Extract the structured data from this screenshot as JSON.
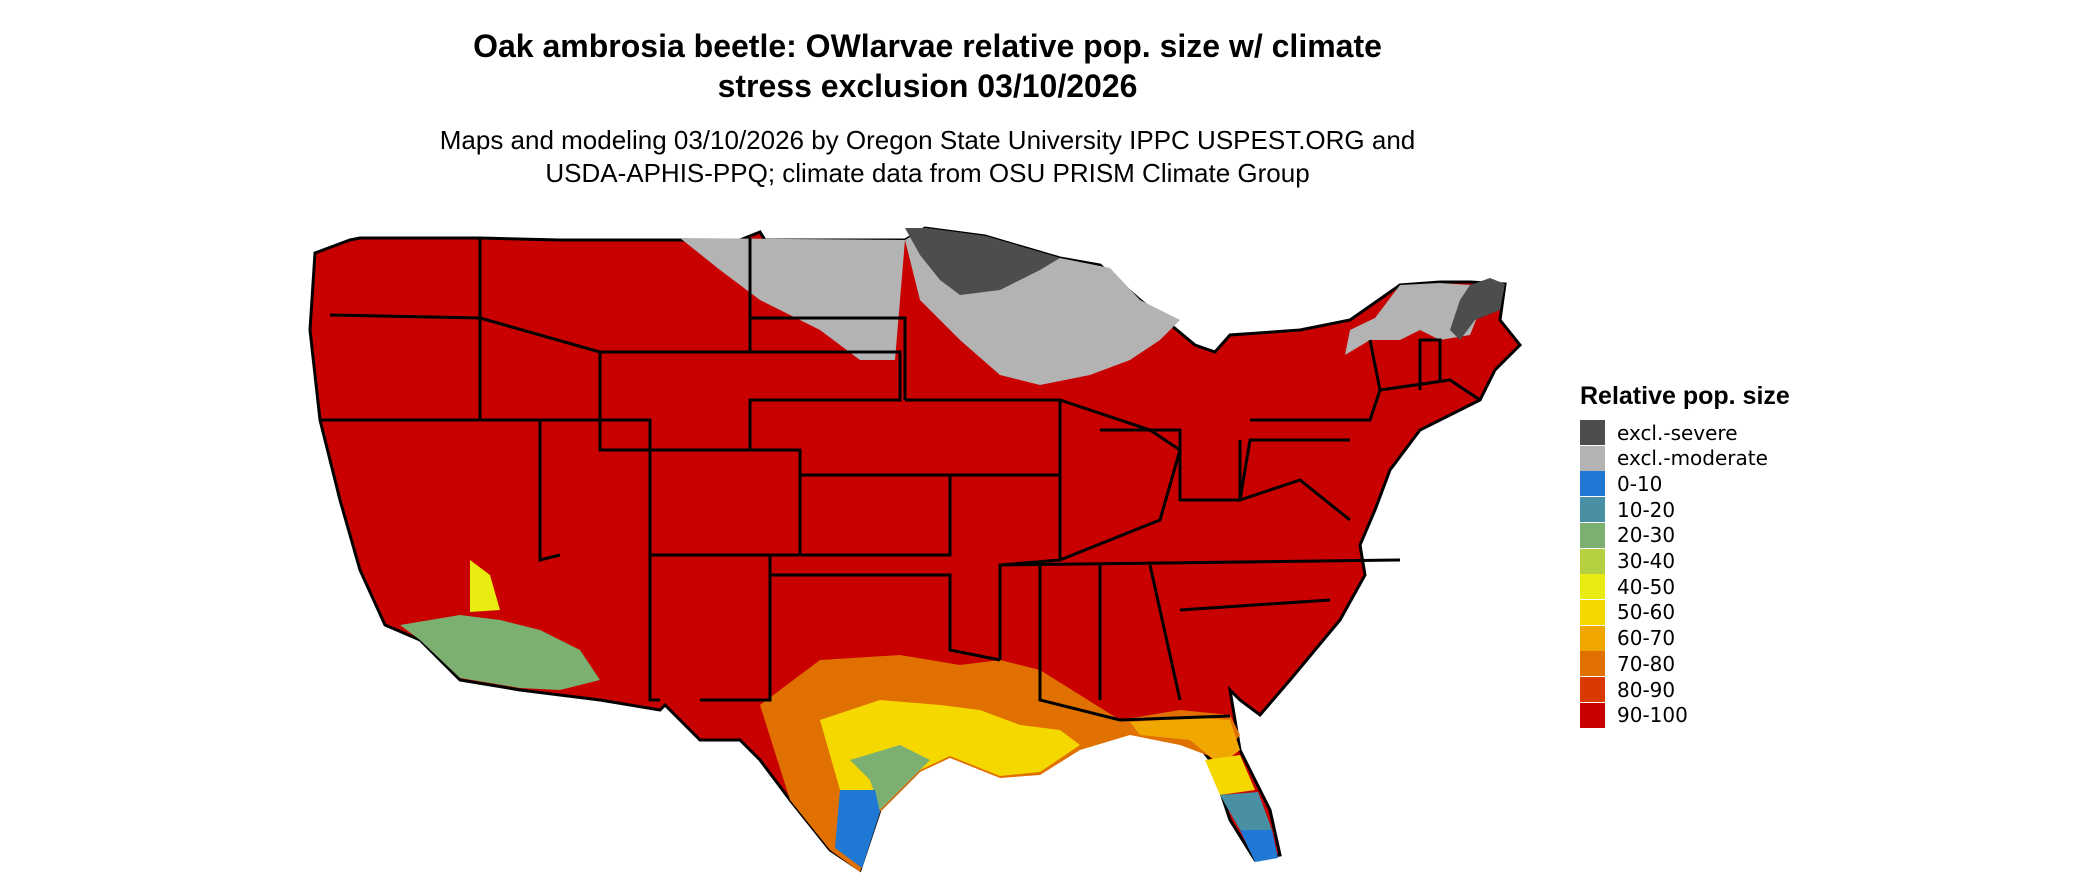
{
  "title_line1": "Oak ambrosia beetle: OWlarvae relative pop. size w/ climate",
  "title_line2": "stress exclusion 03/10/2026",
  "subtitle_line1": "Maps and modeling 03/10/2026 by Oregon State University IPPC USPEST.ORG and",
  "subtitle_line2": "USDA-APHIS-PPQ; climate data from OSU PRISM Climate Group",
  "legend": {
    "title": "Relative pop. size",
    "items": [
      {
        "label": "excl.-severe",
        "color": "#4d4d4d"
      },
      {
        "label": "excl.-moderate",
        "color": "#b3b3b3"
      },
      {
        "label": "0-10",
        "color": "#1f78d4"
      },
      {
        "label": "10-20",
        "color": "#4a90a4"
      },
      {
        "label": "20-30",
        "color": "#7cb070"
      },
      {
        "label": "30-40",
        "color": "#b5d040"
      },
      {
        "label": "40-50",
        "color": "#e8ec10"
      },
      {
        "label": "50-60",
        "color": "#f5d800"
      },
      {
        "label": "60-70",
        "color": "#f0a800"
      },
      {
        "label": "70-80",
        "color": "#e07000"
      },
      {
        "label": "80-90",
        "color": "#d83a00"
      },
      {
        "label": "90-100",
        "color": "#c80000"
      }
    ]
  }
}
